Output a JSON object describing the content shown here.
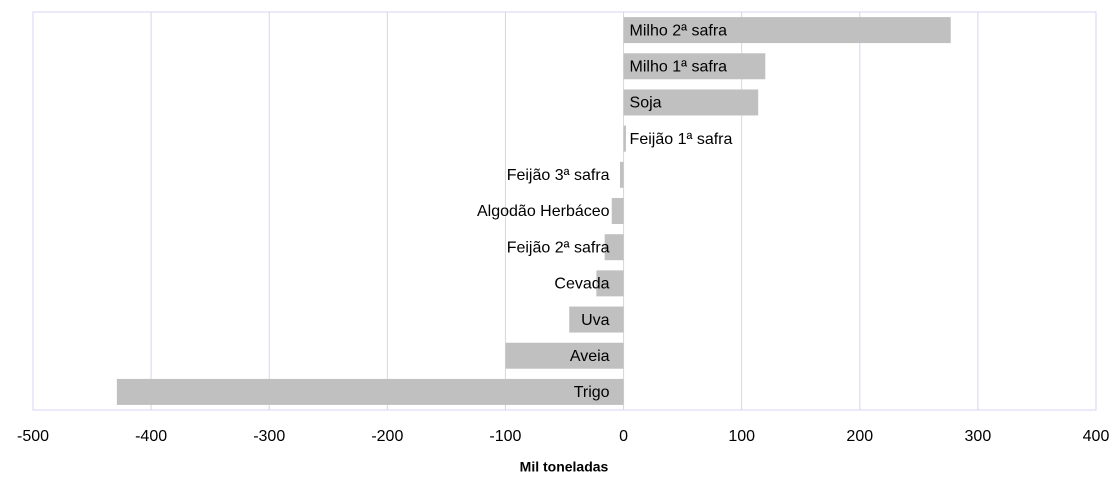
{
  "chart_data": {
    "type": "hbar",
    "categories": [
      "Milho 2ª safra",
      "Milho 1ª safra",
      "Soja",
      "Feijão 1ª safra",
      "Feijão 3ª safra",
      "Algodão Herbáceo",
      "Feijão 2ª safra",
      "Cevada",
      "Uva",
      "Aveia",
      "Trigo"
    ],
    "values": [
      277,
      120,
      114,
      2,
      -3,
      -10,
      -16,
      -23,
      -46,
      -100,
      -429
    ],
    "color": "#c0c0c0",
    "xlabel": "Mil toneladas",
    "xlim": [
      -500,
      400
    ],
    "xticks": [
      -500,
      -400,
      -300,
      -200,
      -100,
      0,
      100,
      200,
      300,
      400
    ],
    "grid": true
  }
}
